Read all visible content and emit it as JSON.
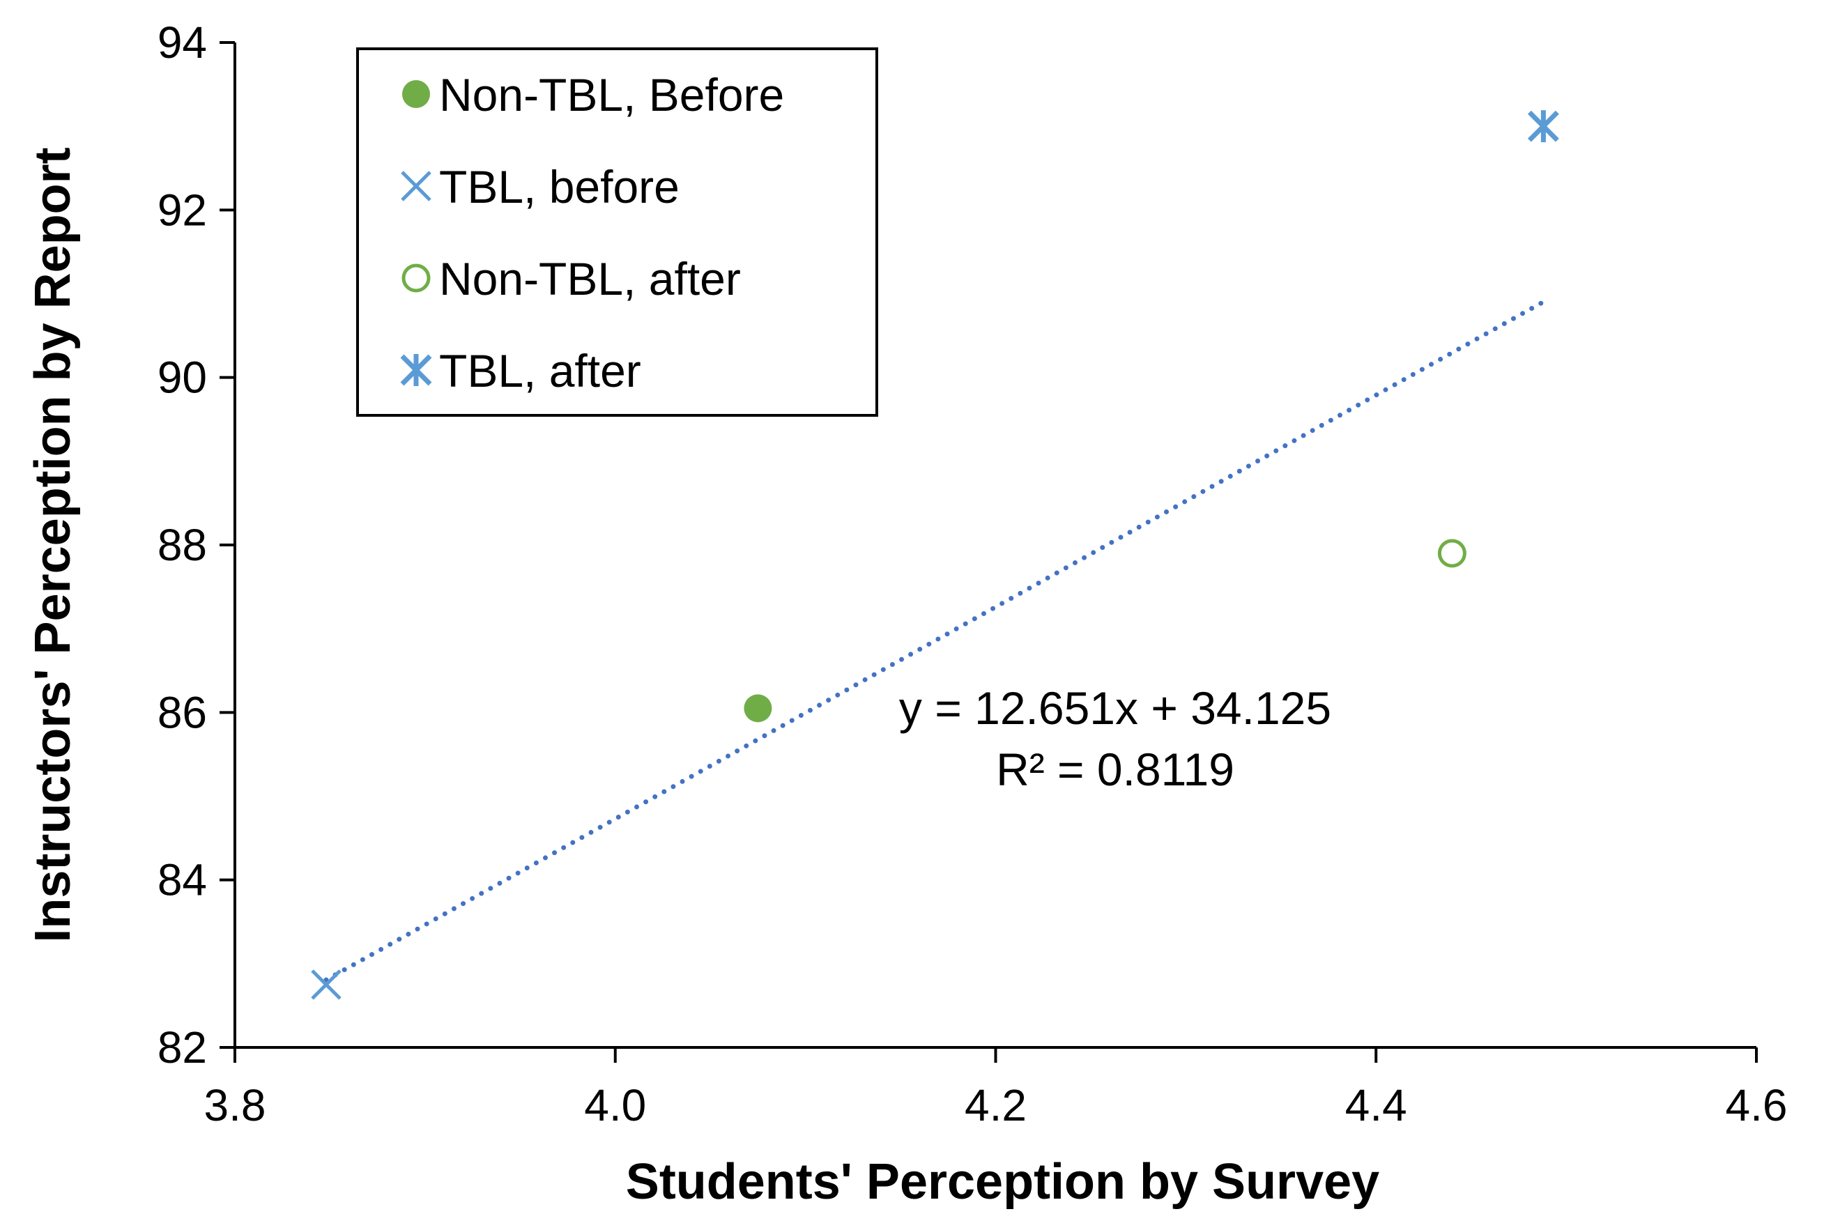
{
  "chart_data": {
    "type": "scatter",
    "title": "",
    "xlabel": "Students' Perception by Survey",
    "ylabel": "Instructors' Perception by Report",
    "xlim": [
      3.8,
      4.6
    ],
    "ylim": [
      82,
      94
    ],
    "xticks": [
      3.8,
      4.0,
      4.2,
      4.4,
      4.6
    ],
    "yticks": [
      82,
      84,
      86,
      88,
      90,
      92,
      94
    ],
    "xtick_labels": [
      "3.8",
      "4.0",
      "4.2",
      "4.4",
      "4.6"
    ],
    "ytick_labels": [
      "82",
      "84",
      "86",
      "88",
      "90",
      "92",
      "94"
    ],
    "grid": false,
    "legend_position": "top-left",
    "series": [
      {
        "name": "Non-TBL, Before",
        "marker": "filled-circle",
        "color": "#70ad47",
        "x": [
          4.075
        ],
        "y": [
          86.05
        ]
      },
      {
        "name": "TBL, before",
        "marker": "x",
        "color": "#5b9bd5",
        "x": [
          3.848
        ],
        "y": [
          82.75
        ]
      },
      {
        "name": "Non-TBL, after",
        "marker": "open-circle",
        "color": "#70ad47",
        "x": [
          4.44
        ],
        "y": [
          87.9
        ]
      },
      {
        "name": "TBL, after",
        "marker": "asterisk",
        "color": "#5b9bd5",
        "x": [
          4.488
        ],
        "y": [
          93.0
        ]
      }
    ],
    "trendline": {
      "style": "dotted",
      "color": "#4472c4",
      "slope": 12.651,
      "intercept": 34.125,
      "x_range": [
        3.848,
        4.488
      ],
      "equation": "y = 12.651x + 34.125",
      "r_squared": "R² = 0.8119"
    }
  }
}
